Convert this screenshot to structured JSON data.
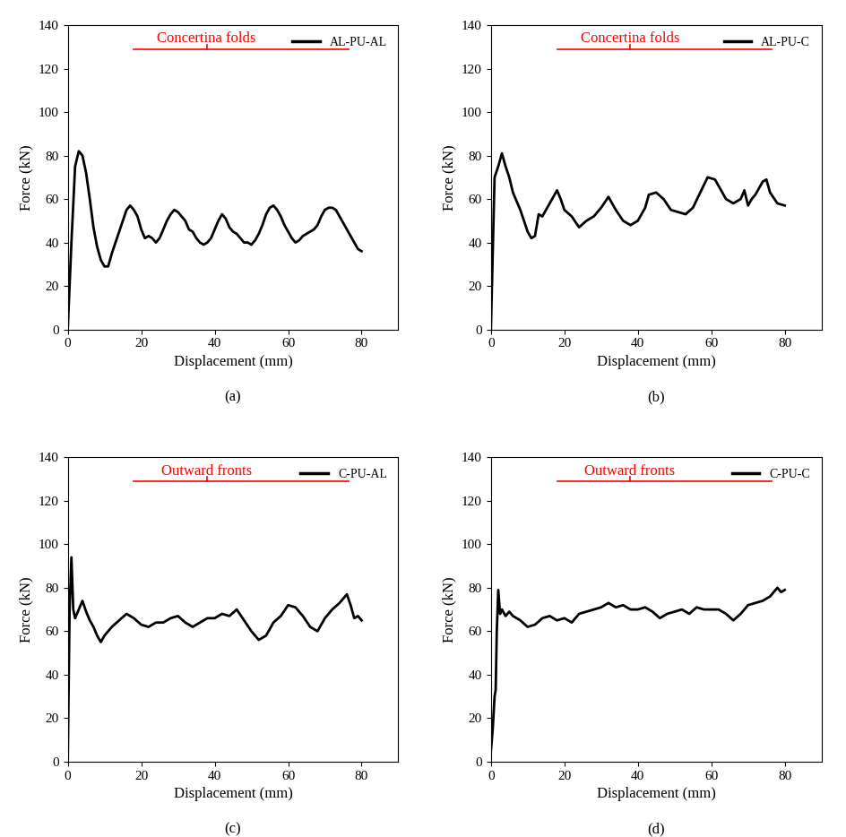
{
  "chart_data": [
    {
      "type": "line",
      "caption": "(a)",
      "annotations": [
        "Concertina folds"
      ],
      "xlabel": "Displacement (mm)",
      "ylabel": "Force (kN)",
      "xlim": [
        0,
        90
      ],
      "xticks": [
        0,
        20,
        40,
        60,
        80
      ],
      "ylim": [
        0,
        140
      ],
      "yticks": [
        0,
        20,
        40,
        60,
        80,
        100,
        120,
        140
      ],
      "legend": "upper right",
      "x": [
        0,
        1,
        2,
        3,
        4,
        5,
        6,
        7,
        8,
        9,
        10,
        11,
        12,
        13,
        14,
        15,
        16,
        17,
        18,
        19,
        20,
        21,
        22,
        23,
        24,
        25,
        26,
        27,
        28,
        29,
        30,
        31,
        32,
        33,
        34,
        35,
        36,
        37,
        38,
        39,
        40,
        41,
        42,
        43,
        44,
        45,
        46,
        47,
        48,
        49,
        50,
        51,
        52,
        53,
        54,
        55,
        56,
        57,
        58,
        59,
        60,
        61,
        62,
        63,
        64,
        65,
        66,
        67,
        68,
        69,
        70,
        71,
        72,
        73,
        74,
        75,
        76,
        77,
        78,
        79,
        80
      ],
      "series": [
        {
          "name": "AL-PU-AL",
          "color": "#000000",
          "values": [
            0,
            40,
            75,
            82,
            80,
            72,
            60,
            47,
            38,
            32,
            29,
            29,
            35,
            40,
            45,
            50,
            55,
            57,
            55,
            52,
            46,
            42,
            43,
            42,
            40,
            42,
            46,
            50,
            53,
            55,
            54,
            52,
            50,
            46,
            45,
            42,
            40,
            39,
            40,
            42,
            46,
            50,
            53,
            51,
            47,
            45,
            44,
            42,
            40,
            40,
            39,
            41,
            44,
            48,
            53,
            56,
            57,
            55,
            52,
            48,
            45,
            42,
            40,
            41,
            43,
            44,
            45,
            46,
            48,
            52,
            55,
            56,
            56,
            55,
            52,
            49,
            46,
            43,
            40,
            37,
            36
          ]
        }
      ]
    },
    {
      "type": "line",
      "caption": "(b)",
      "annotations": [
        "Concertina folds"
      ],
      "xlabel": "Displacement (mm)",
      "ylabel": "Force (kN)",
      "xlim": [
        0,
        90
      ],
      "xticks": [
        0,
        20,
        40,
        60,
        80
      ],
      "ylim": [
        0,
        140
      ],
      "yticks": [
        0,
        20,
        40,
        60,
        80,
        100,
        120,
        140
      ],
      "legend": "upper right",
      "x": [
        0,
        1,
        2,
        3,
        4,
        5,
        6,
        8,
        10,
        11,
        12,
        13,
        14,
        15,
        16,
        18,
        19,
        20,
        22,
        24,
        26,
        28,
        30,
        32,
        34,
        36,
        38,
        40,
        42,
        43,
        45,
        47,
        49,
        51,
        53,
        55,
        57,
        59,
        61,
        62,
        64,
        66,
        68,
        69,
        70,
        71,
        72,
        74,
        75,
        76,
        78,
        80
      ],
      "series": [
        {
          "name": "AL-PU-C",
          "color": "#000000",
          "values": [
            0,
            70,
            75,
            81,
            75,
            70,
            63,
            55,
            45,
            42,
            43,
            53,
            52,
            55,
            58,
            64,
            60,
            55,
            52,
            47,
            50,
            52,
            56,
            61,
            55,
            50,
            48,
            50,
            56,
            62,
            63,
            60,
            55,
            54,
            53,
            56,
            63,
            70,
            69,
            66,
            60,
            58,
            60,
            64,
            57,
            60,
            62,
            68,
            69,
            63,
            58,
            57
          ]
        }
      ]
    },
    {
      "type": "line",
      "caption": "(c)",
      "annotations": [
        "Outward fronts"
      ],
      "xlabel": "Displacement (mm)",
      "ylabel": "Force (kN)",
      "xlim": [
        0,
        90
      ],
      "xticks": [
        0,
        20,
        40,
        60,
        80
      ],
      "ylim": [
        0,
        140
      ],
      "yticks": [
        0,
        20,
        40,
        60,
        80,
        100,
        120,
        140
      ],
      "legend": "upper right",
      "x": [
        0,
        0.5,
        1,
        1.5,
        2,
        3,
        4,
        5,
        6,
        7,
        8,
        9,
        10,
        12,
        14,
        16,
        18,
        20,
        22,
        24,
        26,
        28,
        30,
        32,
        34,
        36,
        38,
        40,
        42,
        44,
        46,
        48,
        50,
        52,
        54,
        56,
        58,
        60,
        62,
        64,
        66,
        68,
        70,
        72,
        74,
        76,
        77,
        78,
        79,
        80
      ],
      "series": [
        {
          "name": "C-PU-AL",
          "color": "#000000",
          "values": [
            0,
            70,
            94,
            70,
            66,
            70,
            74,
            69,
            65,
            62,
            58,
            55,
            58,
            62,
            65,
            68,
            66,
            63,
            62,
            64,
            64,
            66,
            67,
            64,
            62,
            64,
            66,
            66,
            68,
            67,
            70,
            65,
            60,
            56,
            58,
            64,
            67,
            72,
            71,
            67,
            62,
            60,
            66,
            70,
            73,
            77,
            72,
            66,
            67,
            65
          ]
        }
      ]
    },
    {
      "type": "line",
      "caption": "(d)",
      "annotations": [
        "Outward fronts"
      ],
      "xlabel": "Displacement (mm)",
      "ylabel": "Force (kN)",
      "xlim": [
        0,
        90
      ],
      "xticks": [
        0,
        20,
        40,
        60,
        80
      ],
      "ylim": [
        0,
        140
      ],
      "yticks": [
        0,
        20,
        40,
        60,
        80,
        100,
        120,
        140
      ],
      "legend": "upper right",
      "x": [
        0,
        0.5,
        1,
        1.3,
        1.6,
        2,
        2.5,
        3,
        4,
        5,
        6,
        8,
        10,
        12,
        14,
        16,
        18,
        20,
        22,
        24,
        26,
        28,
        30,
        32,
        34,
        36,
        38,
        40,
        42,
        44,
        46,
        48,
        50,
        52,
        54,
        56,
        58,
        60,
        62,
        64,
        66,
        68,
        70,
        72,
        74,
        76,
        78,
        79,
        80
      ],
      "series": [
        {
          "name": "C-PU-C",
          "color": "#000000",
          "values": [
            5,
            15,
            30,
            33,
            60,
            79,
            68,
            70,
            67,
            69,
            67,
            65,
            62,
            63,
            66,
            67,
            65,
            66,
            64,
            68,
            69,
            70,
            71,
            73,
            71,
            72,
            70,
            70,
            71,
            69,
            66,
            68,
            69,
            70,
            68,
            71,
            70,
            70,
            70,
            68,
            65,
            68,
            72,
            73,
            74,
            76,
            80,
            78,
            79
          ]
        }
      ]
    }
  ]
}
